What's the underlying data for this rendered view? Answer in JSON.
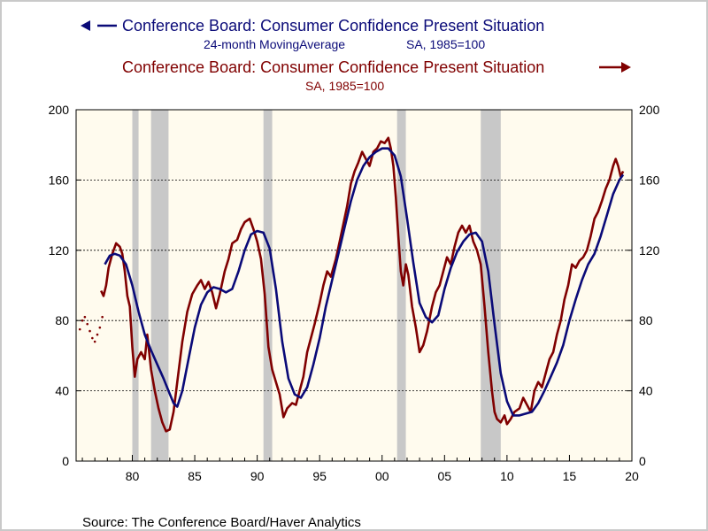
{
  "chart_data": {
    "type": "line",
    "legend": {
      "series1_line1": "Conference Board: Consumer Confidence Present Situation",
      "series1_line2_left": "24-month MovingAverage",
      "series1_line2_right": "SA, 1985=100",
      "series2_line1": "Conference Board: Consumer Confidence Present Situation",
      "series2_line2": "SA, 1985=100",
      "placement": "top-center",
      "series1_axis": "left",
      "series2_axis": "right"
    },
    "source": "Source:  The Conference Board/Haver Analytics",
    "x_range": [
      1975.5,
      2020.0
    ],
    "y_range": [
      0,
      200
    ],
    "x_ticks": [
      {
        "value": 1980,
        "label": "80"
      },
      {
        "value": 1985,
        "label": "85"
      },
      {
        "value": 1990,
        "label": "90"
      },
      {
        "value": 1995,
        "label": "95"
      },
      {
        "value": 2000,
        "label": "00"
      },
      {
        "value": 2005,
        "label": "05"
      },
      {
        "value": 2010,
        "label": "10"
      },
      {
        "value": 2015,
        "label": "15"
      },
      {
        "value": 2020,
        "label": "20"
      }
    ],
    "y_ticks": [
      {
        "value": 0,
        "label": "0"
      },
      {
        "value": 40,
        "label": "40"
      },
      {
        "value": 80,
        "label": "80"
      },
      {
        "value": 120,
        "label": "120"
      },
      {
        "value": 160,
        "label": "160"
      },
      {
        "value": 200,
        "label": "200"
      }
    ],
    "gridlines": "horizontal-dashed",
    "recessions": [
      [
        1980.0,
        1980.5
      ],
      [
        1981.5,
        1982.9
      ],
      [
        1990.5,
        1991.2
      ],
      [
        2001.2,
        2001.9
      ],
      [
        2007.9,
        2009.5
      ]
    ],
    "series": [
      {
        "color": "#0a0a78",
        "points": [
          [
            1977.8,
            112
          ],
          [
            1978.2,
            117
          ],
          [
            1978.6,
            118
          ],
          [
            1979.0,
            117
          ],
          [
            1979.5,
            112
          ],
          [
            1980.0,
            100
          ],
          [
            1980.5,
            85
          ],
          [
            1981.0,
            72
          ],
          [
            1981.5,
            63
          ],
          [
            1982.0,
            55
          ],
          [
            1982.5,
            47
          ],
          [
            1982.9,
            40
          ],
          [
            1983.3,
            33
          ],
          [
            1983.6,
            31
          ],
          [
            1984.0,
            40
          ],
          [
            1984.5,
            58
          ],
          [
            1985.0,
            76
          ],
          [
            1985.5,
            89
          ],
          [
            1986.0,
            96
          ],
          [
            1986.5,
            99
          ],
          [
            1987.0,
            98
          ],
          [
            1987.5,
            96
          ],
          [
            1988.0,
            98
          ],
          [
            1988.5,
            108
          ],
          [
            1989.0,
            120
          ],
          [
            1989.5,
            129
          ],
          [
            1990.0,
            131
          ],
          [
            1990.5,
            130
          ],
          [
            1991.0,
            121
          ],
          [
            1991.5,
            98
          ],
          [
            1992.0,
            68
          ],
          [
            1992.5,
            47
          ],
          [
            1993.0,
            38
          ],
          [
            1993.5,
            36
          ],
          [
            1994.0,
            42
          ],
          [
            1994.5,
            55
          ],
          [
            1995.0,
            70
          ],
          [
            1995.5,
            88
          ],
          [
            1996.0,
            103
          ],
          [
            1996.5,
            118
          ],
          [
            1997.0,
            133
          ],
          [
            1997.5,
            148
          ],
          [
            1998.0,
            160
          ],
          [
            1998.5,
            168
          ],
          [
            1999.0,
            173
          ],
          [
            1999.5,
            176
          ],
          [
            2000.0,
            178
          ],
          [
            2000.5,
            178
          ],
          [
            2001.0,
            174
          ],
          [
            2001.5,
            162
          ],
          [
            2002.0,
            138
          ],
          [
            2002.5,
            113
          ],
          [
            2003.0,
            90
          ],
          [
            2003.5,
            82
          ],
          [
            2004.0,
            79
          ],
          [
            2004.5,
            83
          ],
          [
            2005.0,
            98
          ],
          [
            2005.5,
            110
          ],
          [
            2006.0,
            119
          ],
          [
            2006.5,
            125
          ],
          [
            2007.0,
            129
          ],
          [
            2007.5,
            130
          ],
          [
            2008.0,
            125
          ],
          [
            2008.5,
            108
          ],
          [
            2009.0,
            78
          ],
          [
            2009.5,
            50
          ],
          [
            2010.0,
            34
          ],
          [
            2010.5,
            26
          ],
          [
            2011.0,
            26
          ],
          [
            2011.5,
            27
          ],
          [
            2012.0,
            28
          ],
          [
            2012.5,
            33
          ],
          [
            2013.0,
            40
          ],
          [
            2013.5,
            48
          ],
          [
            2014.0,
            56
          ],
          [
            2014.5,
            66
          ],
          [
            2015.0,
            80
          ],
          [
            2015.5,
            92
          ],
          [
            2016.0,
            103
          ],
          [
            2016.5,
            112
          ],
          [
            2017.0,
            118
          ],
          [
            2017.5,
            128
          ],
          [
            2018.0,
            140
          ],
          [
            2018.5,
            152
          ],
          [
            2019.0,
            160
          ],
          [
            2019.3,
            163
          ]
        ]
      },
      {
        "color": "#800000",
        "points": [
          [
            1977.5,
            97
          ],
          [
            1977.7,
            94
          ],
          [
            1977.9,
            100
          ],
          [
            1978.1,
            110
          ],
          [
            1978.4,
            118
          ],
          [
            1978.7,
            124
          ],
          [
            1979.0,
            122
          ],
          [
            1979.2,
            118
          ],
          [
            1979.4,
            108
          ],
          [
            1979.6,
            94
          ],
          [
            1979.8,
            88
          ],
          [
            1980.0,
            65
          ],
          [
            1980.2,
            48
          ],
          [
            1980.4,
            58
          ],
          [
            1980.7,
            62
          ],
          [
            1981.0,
            58
          ],
          [
            1981.2,
            72
          ],
          [
            1981.5,
            52
          ],
          [
            1981.8,
            40
          ],
          [
            1982.1,
            30
          ],
          [
            1982.4,
            22
          ],
          [
            1982.7,
            17
          ],
          [
            1983.0,
            18
          ],
          [
            1983.3,
            28
          ],
          [
            1983.6,
            45
          ],
          [
            1984.0,
            68
          ],
          [
            1984.4,
            85
          ],
          [
            1984.8,
            95
          ],
          [
            1985.2,
            100
          ],
          [
            1985.5,
            103
          ],
          [
            1985.8,
            98
          ],
          [
            1986.1,
            102
          ],
          [
            1986.4,
            96
          ],
          [
            1986.7,
            87
          ],
          [
            1987.0,
            95
          ],
          [
            1987.4,
            108
          ],
          [
            1987.7,
            115
          ],
          [
            1988.0,
            124
          ],
          [
            1988.4,
            126
          ],
          [
            1988.7,
            132
          ],
          [
            1989.0,
            136
          ],
          [
            1989.4,
            138
          ],
          [
            1989.7,
            132
          ],
          [
            1990.0,
            125
          ],
          [
            1990.3,
            115
          ],
          [
            1990.6,
            95
          ],
          [
            1990.9,
            65
          ],
          [
            1991.2,
            52
          ],
          [
            1991.5,
            45
          ],
          [
            1991.8,
            38
          ],
          [
            1992.1,
            25
          ],
          [
            1992.4,
            30
          ],
          [
            1992.8,
            33
          ],
          [
            1993.1,
            32
          ],
          [
            1993.4,
            40
          ],
          [
            1993.7,
            48
          ],
          [
            1994.0,
            62
          ],
          [
            1994.3,
            70
          ],
          [
            1994.6,
            78
          ],
          [
            1995.0,
            90
          ],
          [
            1995.3,
            100
          ],
          [
            1995.6,
            108
          ],
          [
            1995.9,
            105
          ],
          [
            1996.3,
            115
          ],
          [
            1996.6,
            125
          ],
          [
            1996.9,
            135
          ],
          [
            1997.2,
            145
          ],
          [
            1997.5,
            158
          ],
          [
            1997.8,
            165
          ],
          [
            1998.1,
            170
          ],
          [
            1998.4,
            176
          ],
          [
            1998.7,
            172
          ],
          [
            1999.0,
            168
          ],
          [
            1999.3,
            176
          ],
          [
            1999.6,
            178
          ],
          [
            1999.9,
            182
          ],
          [
            2000.2,
            181
          ],
          [
            2000.5,
            184
          ],
          [
            2000.7,
            178
          ],
          [
            2000.9,
            168
          ],
          [
            2001.1,
            150
          ],
          [
            2001.3,
            128
          ],
          [
            2001.5,
            108
          ],
          [
            2001.7,
            100
          ],
          [
            2001.9,
            112
          ],
          [
            2002.1,
            106
          ],
          [
            2002.4,
            88
          ],
          [
            2002.7,
            76
          ],
          [
            2003.0,
            62
          ],
          [
            2003.3,
            66
          ],
          [
            2003.6,
            74
          ],
          [
            2004.0,
            88
          ],
          [
            2004.3,
            96
          ],
          [
            2004.6,
            100
          ],
          [
            2004.9,
            108
          ],
          [
            2005.2,
            116
          ],
          [
            2005.5,
            112
          ],
          [
            2005.8,
            122
          ],
          [
            2006.1,
            130
          ],
          [
            2006.4,
            134
          ],
          [
            2006.7,
            130
          ],
          [
            2007.0,
            134
          ],
          [
            2007.3,
            125
          ],
          [
            2007.6,
            120
          ],
          [
            2007.9,
            112
          ],
          [
            2008.2,
            88
          ],
          [
            2008.5,
            62
          ],
          [
            2008.8,
            40
          ],
          [
            2009.0,
            28
          ],
          [
            2009.2,
            24
          ],
          [
            2009.5,
            22
          ],
          [
            2009.8,
            26
          ],
          [
            2010.0,
            21
          ],
          [
            2010.3,
            24
          ],
          [
            2010.6,
            28
          ],
          [
            2011.0,
            30
          ],
          [
            2011.3,
            36
          ],
          [
            2011.6,
            32
          ],
          [
            2011.9,
            28
          ],
          [
            2012.2,
            40
          ],
          [
            2012.5,
            45
          ],
          [
            2012.8,
            42
          ],
          [
            2013.1,
            50
          ],
          [
            2013.4,
            58
          ],
          [
            2013.7,
            62
          ],
          [
            2014.0,
            72
          ],
          [
            2014.3,
            80
          ],
          [
            2014.6,
            92
          ],
          [
            2014.9,
            100
          ],
          [
            2015.2,
            112
          ],
          [
            2015.5,
            110
          ],
          [
            2015.8,
            114
          ],
          [
            2016.1,
            116
          ],
          [
            2016.4,
            120
          ],
          [
            2016.7,
            128
          ],
          [
            2017.0,
            138
          ],
          [
            2017.3,
            142
          ],
          [
            2017.6,
            148
          ],
          [
            2017.9,
            155
          ],
          [
            2018.2,
            160
          ],
          [
            2018.5,
            168
          ],
          [
            2018.7,
            172
          ],
          [
            2018.9,
            168
          ],
          [
            2019.1,
            162
          ],
          [
            2019.3,
            165
          ]
        ]
      }
    ],
    "early_points": [
      [
        1975.8,
        75
      ],
      [
        1976.0,
        80
      ],
      [
        1976.2,
        82
      ],
      [
        1976.4,
        78
      ],
      [
        1976.6,
        74
      ],
      [
        1976.8,
        70
      ],
      [
        1977.0,
        68
      ],
      [
        1977.2,
        72
      ],
      [
        1977.4,
        76
      ],
      [
        1977.6,
        82
      ]
    ]
  }
}
